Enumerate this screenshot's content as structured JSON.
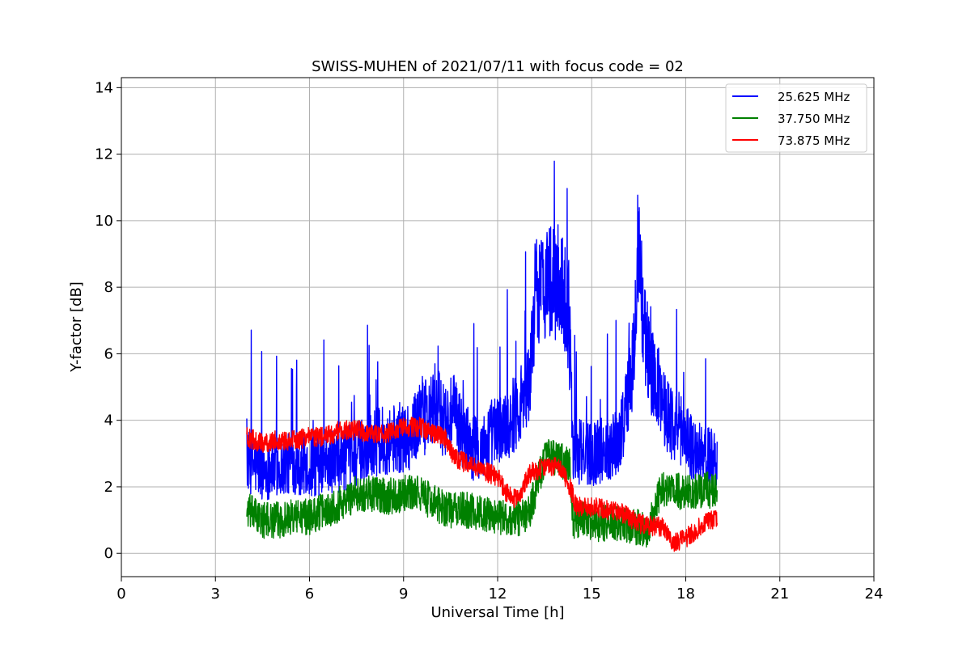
{
  "chart_data": {
    "type": "line",
    "title": "SWISS-MUHEN of 2021/07/11 with focus code = 02",
    "xlabel": "Universal Time [h]",
    "ylabel": "Y-factor [dB]",
    "xlim": [
      0,
      24
    ],
    "ylim": [
      -0.7,
      14.3
    ],
    "xticks": [
      0,
      3,
      6,
      9,
      12,
      15,
      18,
      21,
      24
    ],
    "yticks": [
      0,
      2,
      4,
      6,
      8,
      10,
      12,
      14
    ],
    "grid": true,
    "legend_position": "top-right",
    "series": [
      {
        "name": "25.625 MHz",
        "color": "#0000ff",
        "x": [
          4.0,
          4.5,
          5.0,
          5.5,
          6.0,
          6.5,
          7.0,
          7.5,
          8.0,
          8.5,
          9.0,
          9.3,
          9.55,
          9.8,
          10.0,
          10.3,
          10.6,
          10.9,
          11.2,
          11.5,
          11.8,
          12.1,
          12.4,
          12.7,
          13.0,
          13.2,
          13.4,
          13.6,
          13.8,
          14.0,
          14.2,
          14.35,
          14.4,
          14.7,
          15.0,
          15.3,
          15.6,
          15.9,
          16.1,
          16.3,
          16.5,
          16.7,
          16.9,
          17.1,
          17.3,
          17.5,
          17.7,
          18.0,
          18.3,
          18.6,
          19.0
        ],
        "y": [
          2.8,
          2.5,
          2.6,
          2.7,
          2.6,
          2.7,
          2.8,
          3.0,
          3.3,
          3.4,
          3.5,
          3.6,
          4.2,
          4.0,
          4.5,
          4.0,
          4.2,
          3.6,
          3.2,
          3.1,
          3.6,
          3.7,
          4.0,
          4.5,
          5.0,
          7.8,
          8.0,
          8.3,
          8.0,
          8.2,
          7.5,
          5.5,
          3.2,
          3.0,
          3.0,
          3.1,
          3.2,
          3.5,
          4.5,
          5.5,
          9.0,
          6.5,
          5.5,
          5.0,
          4.5,
          4.0,
          3.8,
          3.6,
          3.0,
          2.9,
          2.8
        ]
      },
      {
        "name": "37.750 MHz",
        "color": "#008000",
        "x": [
          4.0,
          4.5,
          5.0,
          5.5,
          6.0,
          6.5,
          7.0,
          7.5,
          8.0,
          8.5,
          9.0,
          9.5,
          10.0,
          10.5,
          11.0,
          11.5,
          12.0,
          12.5,
          13.0,
          13.5,
          14.0,
          14.3,
          14.4,
          14.8,
          15.2,
          15.6,
          16.0,
          16.4,
          16.8,
          17.2,
          17.6,
          18.0,
          18.4,
          19.0
        ],
        "y": [
          1.3,
          1.0,
          1.0,
          1.1,
          1.1,
          1.3,
          1.5,
          1.8,
          1.8,
          1.7,
          1.8,
          1.8,
          1.5,
          1.3,
          1.3,
          1.2,
          1.1,
          1.0,
          1.2,
          2.9,
          2.8,
          2.6,
          1.0,
          1.0,
          0.9,
          0.9,
          0.8,
          0.8,
          0.7,
          1.9,
          1.9,
          1.8,
          1.9,
          1.9
        ]
      },
      {
        "name": "73.875 MHz",
        "color": "#ff0000",
        "x": [
          4.0,
          4.5,
          5.0,
          5.5,
          6.0,
          6.5,
          7.0,
          7.5,
          8.0,
          8.5,
          9.0,
          9.5,
          10.0,
          10.3,
          10.6,
          11.0,
          11.5,
          12.0,
          12.3,
          12.6,
          13.0,
          13.5,
          14.0,
          14.35,
          14.5,
          15.0,
          15.5,
          16.0,
          16.5,
          17.0,
          17.3,
          17.6,
          17.9,
          18.2,
          18.6,
          19.0
        ],
        "y": [
          3.5,
          3.3,
          3.4,
          3.4,
          3.5,
          3.5,
          3.7,
          3.7,
          3.6,
          3.6,
          3.8,
          3.8,
          3.6,
          3.5,
          2.9,
          2.7,
          2.5,
          2.3,
          1.8,
          1.6,
          2.4,
          2.6,
          2.6,
          1.9,
          1.4,
          1.4,
          1.3,
          1.2,
          0.9,
          0.8,
          0.8,
          0.3,
          0.4,
          0.6,
          0.9,
          1.1
        ]
      }
    ]
  }
}
